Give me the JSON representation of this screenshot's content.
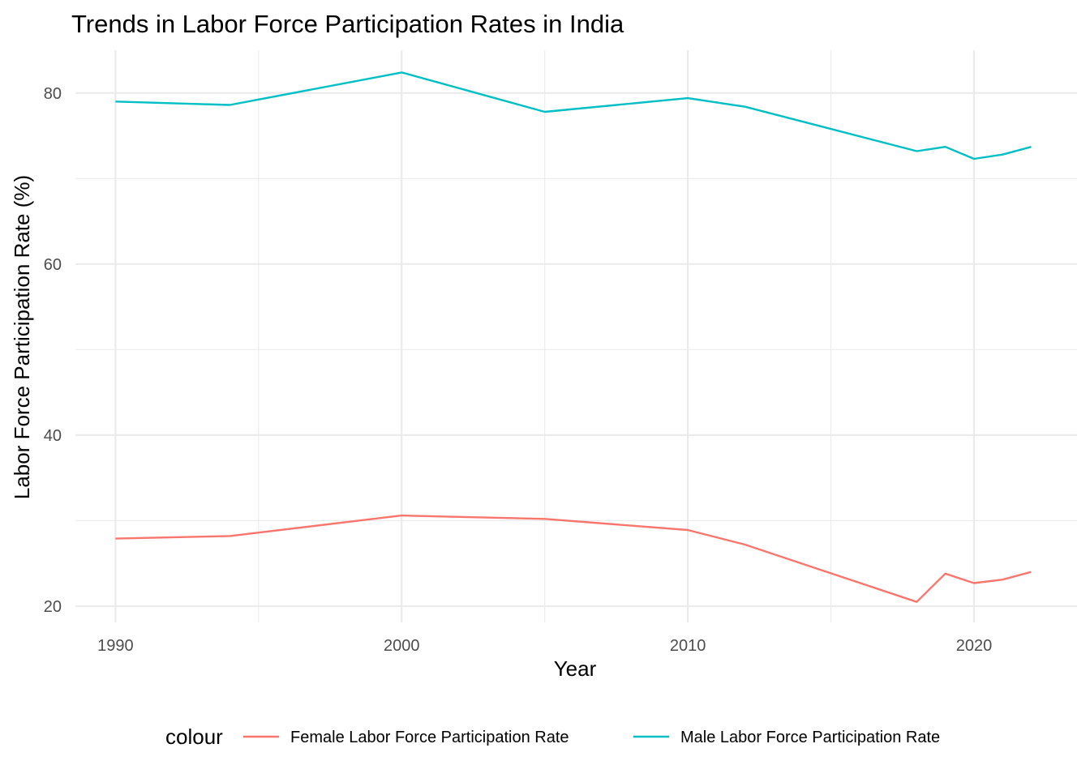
{
  "chart_data": {
    "type": "line",
    "title": "Trends in Labor Force Participation Rates in India",
    "xlabel": "Year",
    "ylabel": "Labor Force Participation Rate (%)",
    "xlim": [
      1988.6,
      2023.6
    ],
    "ylim": [
      18.1,
      85.0
    ],
    "x_ticks": [
      1990,
      2000,
      2010,
      2020
    ],
    "x_minor_ticks": [
      1995,
      2005,
      2015
    ],
    "y_ticks": [
      20,
      40,
      60,
      80
    ],
    "y_minor_ticks": [
      30,
      50,
      70
    ],
    "grid": true,
    "legend_position": "bottom",
    "legend_title": "colour",
    "series": [
      {
        "name": "Female Labor Force Participation Rate",
        "color": "#F8766D",
        "x": [
          1990,
          1994,
          2000,
          2005,
          2010,
          2012,
          2018,
          2019,
          2020,
          2021,
          2022
        ],
        "values": [
          27.9,
          28.2,
          30.6,
          30.2,
          28.9,
          27.2,
          20.5,
          23.8,
          22.7,
          23.1,
          24.0
        ]
      },
      {
        "name": "Male Labor Force Participation Rate",
        "color": "#00BFC4",
        "x": [
          1990,
          1994,
          2000,
          2005,
          2010,
          2012,
          2018,
          2019,
          2020,
          2021,
          2022
        ],
        "values": [
          79.0,
          78.6,
          82.4,
          77.8,
          79.4,
          78.4,
          73.2,
          73.7,
          72.3,
          72.8,
          73.7
        ]
      }
    ]
  }
}
